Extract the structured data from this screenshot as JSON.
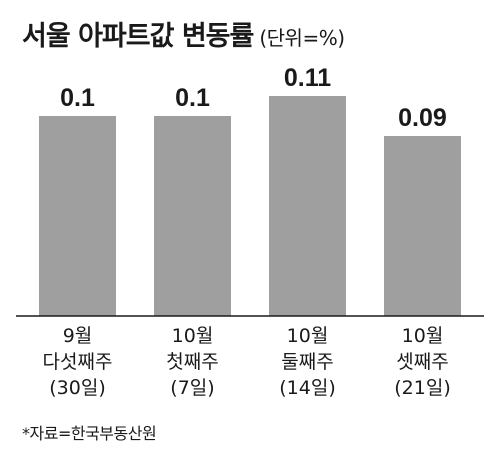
{
  "header": {
    "title": "서울 아파트값 변동률",
    "unit": "(단위=%)"
  },
  "source": "*자료=한국부동산원",
  "colors": {
    "bar": "#9f9f9f",
    "axis": "#1a1a1a",
    "text": "#1a1a1a"
  },
  "chart_data": {
    "type": "bar",
    "title": "서울 아파트값 변동률",
    "unit": "%",
    "categories": [
      [
        "9월",
        "다섯째주",
        "(30일)"
      ],
      [
        "10월",
        "첫째주",
        "(7일)"
      ],
      [
        "10월",
        "둘째주",
        "(14일)"
      ],
      [
        "10월",
        "셋째주",
        "(21일)"
      ]
    ],
    "values": [
      0.1,
      0.1,
      0.11,
      0.09
    ],
    "value_labels": [
      "0.1",
      "0.1",
      "0.11",
      "0.09"
    ],
    "ylim": [
      0,
      0.125
    ],
    "grid": false,
    "legend": "none"
  }
}
